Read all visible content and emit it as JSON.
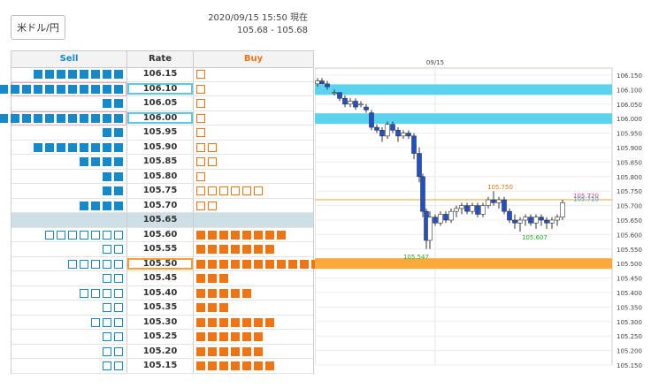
{
  "pair_button": "米ドル/円",
  "timestamp": {
    "line1": "2020/09/15 15:50 現在",
    "line2": "105.68 - 105.68"
  },
  "orderbook": {
    "headers": {
      "sell": "Sell",
      "rate": "Rate",
      "buy": "Buy"
    },
    "rows": [
      {
        "rate": "106.15",
        "sell": 8,
        "sell_style": "filled",
        "buy": 1,
        "buy_style": "outline"
      },
      {
        "rate": "106.10",
        "sell": 11,
        "sell_style": "filled",
        "buy": 1,
        "buy_style": "outline",
        "highlight": "blue"
      },
      {
        "rate": "106.05",
        "sell": 2,
        "sell_style": "filled",
        "buy": 1,
        "buy_style": "outline"
      },
      {
        "rate": "106.00",
        "sell": 11,
        "sell_style": "filled",
        "buy": 1,
        "buy_style": "outline",
        "highlight": "blue"
      },
      {
        "rate": "105.95",
        "sell": 2,
        "sell_style": "filled",
        "buy": 1,
        "buy_style": "outline"
      },
      {
        "rate": "105.90",
        "sell": 8,
        "sell_style": "filled",
        "buy": 2,
        "buy_style": "outline"
      },
      {
        "rate": "105.85",
        "sell": 4,
        "sell_style": "filled",
        "buy": 2,
        "buy_style": "outline"
      },
      {
        "rate": "105.80",
        "sell": 2,
        "sell_style": "filled",
        "buy": 1,
        "buy_style": "outline"
      },
      {
        "rate": "105.75",
        "sell": 2,
        "sell_style": "filled",
        "buy": 6,
        "buy_style": "outline"
      },
      {
        "rate": "105.70",
        "sell": 4,
        "sell_style": "filled",
        "buy": 2,
        "buy_style": "outline"
      },
      {
        "rate": "105.65",
        "sell": 0,
        "sell_style": "filled",
        "buy": 0,
        "buy_style": "outline",
        "mid": true
      },
      {
        "rate": "105.60",
        "sell": 7,
        "sell_style": "outline",
        "buy": 8,
        "buy_style": "filled"
      },
      {
        "rate": "105.55",
        "sell": 2,
        "sell_style": "outline",
        "buy": 7,
        "buy_style": "filled"
      },
      {
        "rate": "105.50",
        "sell": 5,
        "sell_style": "outline",
        "buy": 11,
        "buy_style": "filled",
        "highlight": "orange"
      },
      {
        "rate": "105.45",
        "sell": 2,
        "sell_style": "outline",
        "buy": 3,
        "buy_style": "filled"
      },
      {
        "rate": "105.40",
        "sell": 4,
        "sell_style": "outline",
        "buy": 5,
        "buy_style": "filled"
      },
      {
        "rate": "105.35",
        "sell": 2,
        "sell_style": "outline",
        "buy": 3,
        "buy_style": "filled"
      },
      {
        "rate": "105.30",
        "sell": 3,
        "sell_style": "outline",
        "buy": 7,
        "buy_style": "filled"
      },
      {
        "rate": "105.25",
        "sell": 2,
        "sell_style": "outline",
        "buy": 6,
        "buy_style": "filled"
      },
      {
        "rate": "105.20",
        "sell": 2,
        "sell_style": "outline",
        "buy": 6,
        "buy_style": "filled"
      },
      {
        "rate": "105.15",
        "sell": 2,
        "sell_style": "outline",
        "buy": 7,
        "buy_style": "filled"
      }
    ]
  },
  "chart": {
    "date_label": "09/15",
    "y_labels": [
      "106.150",
      "106.100",
      "106.050",
      "106.000",
      "105.950",
      "105.900",
      "105.850",
      "105.800",
      "105.750",
      "105.700",
      "105.650",
      "105.600",
      "105.550",
      "105.500",
      "105.450",
      "105.400",
      "105.350",
      "105.300",
      "105.250",
      "105.200",
      "105.150"
    ],
    "y_max": 106.15,
    "y_min": 105.15,
    "bands": [
      {
        "price": 106.1,
        "color": "#5bd3ee"
      },
      {
        "price": 106.0,
        "color": "#5bd3ee"
      },
      {
        "price": 105.5,
        "color": "#fba93a"
      }
    ],
    "hline": {
      "price": 105.72,
      "color": "#f5a030"
    },
    "labels": [
      {
        "text": "105.750",
        "price": 105.75,
        "color": "#f07414"
      },
      {
        "text": "105.720",
        "price": 105.72,
        "color": "#e33b7b"
      },
      {
        "text": "105.710",
        "price": 105.71,
        "color": "#2aa9d8"
      },
      {
        "text": "105.607",
        "price": 105.607,
        "color": "#22aa22"
      },
      {
        "text": "105.547",
        "price": 105.547,
        "color": "#22aa22"
      }
    ]
  },
  "colors": {
    "sell": "#1589c9",
    "buy": "#f07414",
    "band_blue": "#5bd3ee",
    "band_orange": "#fba93a",
    "candle": "#1f4fc9"
  }
}
